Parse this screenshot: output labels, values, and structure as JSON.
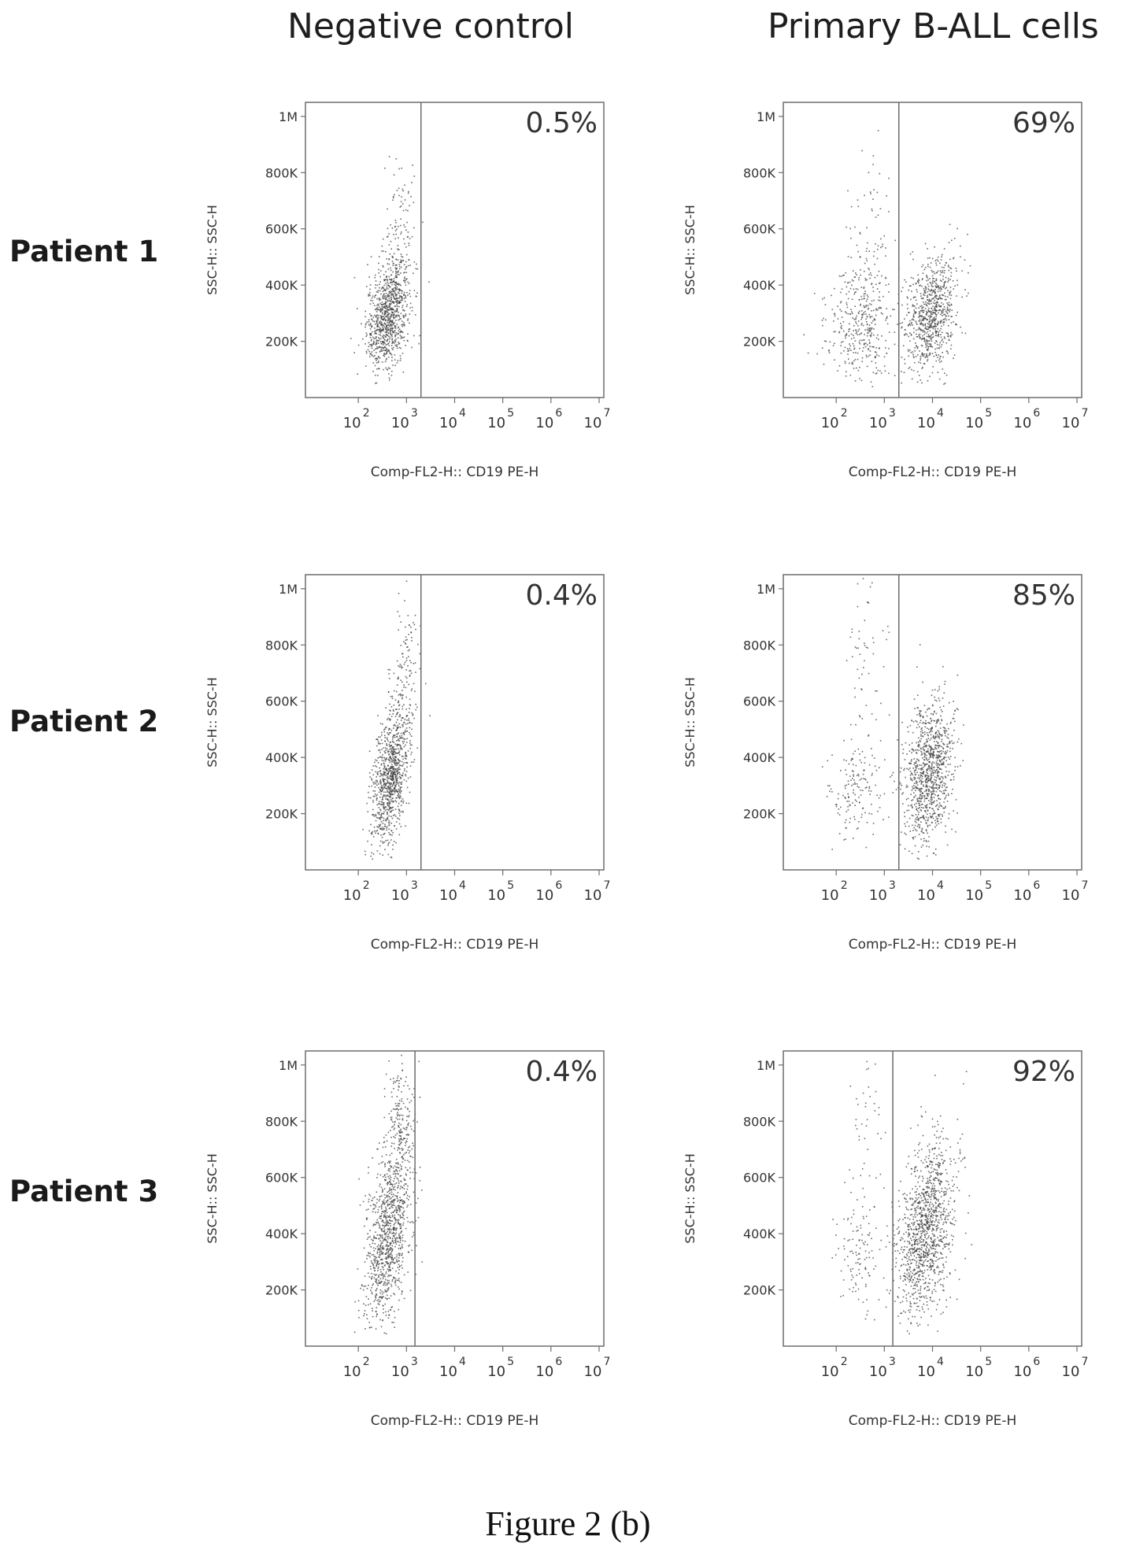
{
  "column_titles": [
    "Negative control",
    "Primary B-ALL cells"
  ],
  "row_labels": [
    "Patient 1",
    "Patient 2",
    "Patient 3"
  ],
  "figure_caption": "Figure 2 (b)",
  "colors": {
    "dots": "#3a3a3a",
    "frame": "#6d6d6d",
    "text": "#222222"
  },
  "chart_data": [
    {
      "type": "scatter",
      "row": "Patient 1",
      "column": "Negative control",
      "xlabel": "Comp-FL2-H:: CD19 PE-H",
      "ylabel": "SSC-H:: SSC-H",
      "x_scale": "log",
      "xlim": [
        10,
        10000000
      ],
      "ylim": [
        0,
        1050000
      ],
      "x_ticks": [
        "10",
        "10",
        "10",
        "10",
        "10",
        "10"
      ],
      "x_tick_exponents": [
        "2",
        "3",
        "4",
        "5",
        "6",
        "7"
      ],
      "y_ticks": [
        {
          "value": 200000,
          "label": "200K"
        },
        {
          "value": 400000,
          "label": "400K"
        },
        {
          "value": 600000,
          "label": "600K"
        },
        {
          "value": 800000,
          "label": "800K"
        },
        {
          "value": 1000000,
          "label": "1M"
        }
      ],
      "gate_x": 2000,
      "gate_percent": "0.5%",
      "populations": [
        {
          "center_x": 400,
          "center_y": 290000,
          "spread_log_x": 0.22,
          "spread_y": 90000,
          "n": 900,
          "tilt": 0.35
        },
        {
          "center_x": 700,
          "center_y": 550000,
          "spread_log_x": 0.18,
          "spread_y": 130000,
          "n": 140,
          "tilt": 0.2
        }
      ]
    },
    {
      "type": "scatter",
      "row": "Patient 1",
      "column": "Primary B-ALL cells",
      "xlabel": "Comp-FL2-H:: CD19 PE-H",
      "ylabel": "SSC-H:: SSC-H",
      "x_scale": "log",
      "xlim": [
        10,
        10000000
      ],
      "ylim": [
        0,
        1050000
      ],
      "x_ticks": [
        "10",
        "10",
        "10",
        "10",
        "10",
        "10"
      ],
      "x_tick_exponents": [
        "2",
        "3",
        "4",
        "5",
        "6",
        "7"
      ],
      "y_ticks": [
        {
          "value": 200000,
          "label": "200K"
        },
        {
          "value": 400000,
          "label": "400K"
        },
        {
          "value": 600000,
          "label": "600K"
        },
        {
          "value": 800000,
          "label": "800K"
        },
        {
          "value": 1000000,
          "label": "1M"
        }
      ],
      "gate_x": 2000,
      "gate_percent": "69%",
      "populations": [
        {
          "center_x": 300,
          "center_y": 270000,
          "spread_log_x": 0.35,
          "spread_y": 110000,
          "n": 380,
          "tilt": 0.0
        },
        {
          "center_x": 500,
          "center_y": 600000,
          "spread_log_x": 0.25,
          "spread_y": 150000,
          "n": 70,
          "tilt": 0.0
        },
        {
          "center_x": 9000,
          "center_y": 290000,
          "spread_log_x": 0.28,
          "spread_y": 100000,
          "n": 800,
          "tilt": 0.3
        }
      ]
    },
    {
      "type": "scatter",
      "row": "Patient 2",
      "column": "Negative control",
      "xlabel": "Comp-FL2-H:: CD19 PE-H",
      "ylabel": "SSC-H:: SSC-H",
      "x_scale": "log",
      "xlim": [
        10,
        10000000
      ],
      "ylim": [
        0,
        1050000
      ],
      "x_ticks": [
        "10",
        "10",
        "10",
        "10",
        "10",
        "10"
      ],
      "x_tick_exponents": [
        "2",
        "3",
        "4",
        "5",
        "6",
        "7"
      ],
      "y_ticks": [
        {
          "value": 200000,
          "label": "200K"
        },
        {
          "value": 400000,
          "label": "400K"
        },
        {
          "value": 600000,
          "label": "600K"
        },
        {
          "value": 800000,
          "label": "800K"
        },
        {
          "value": 1000000,
          "label": "1M"
        }
      ],
      "gate_x": 2000,
      "gate_percent": "0.4%",
      "populations": [
        {
          "center_x": 450,
          "center_y": 330000,
          "spread_log_x": 0.2,
          "spread_y": 120000,
          "n": 950,
          "tilt": 0.55
        },
        {
          "center_x": 900,
          "center_y": 700000,
          "spread_log_x": 0.15,
          "spread_y": 130000,
          "n": 120,
          "tilt": 0.2
        }
      ]
    },
    {
      "type": "scatter",
      "row": "Patient 2",
      "column": "Primary B-ALL cells",
      "xlabel": "Comp-FL2-H:: CD19 PE-H",
      "ylabel": "SSC-H:: SSC-H",
      "x_scale": "log",
      "xlim": [
        10,
        10000000
      ],
      "ylim": [
        0,
        1050000
      ],
      "x_ticks": [
        "10",
        "10",
        "10",
        "10",
        "10",
        "10"
      ],
      "x_tick_exponents": [
        "2",
        "3",
        "4",
        "5",
        "6",
        "7"
      ],
      "y_ticks": [
        {
          "value": 200000,
          "label": "200K"
        },
        {
          "value": 400000,
          "label": "400K"
        },
        {
          "value": 600000,
          "label": "600K"
        },
        {
          "value": 800000,
          "label": "800K"
        },
        {
          "value": 1000000,
          "label": "1M"
        }
      ],
      "gate_x": 2000,
      "gate_percent": "85%",
      "populations": [
        {
          "center_x": 250,
          "center_y": 280000,
          "spread_log_x": 0.3,
          "spread_y": 90000,
          "n": 160,
          "tilt": 0.0
        },
        {
          "center_x": 400,
          "center_y": 750000,
          "spread_log_x": 0.2,
          "spread_y": 160000,
          "n": 60,
          "tilt": 0.0
        },
        {
          "center_x": 8000,
          "center_y": 340000,
          "spread_log_x": 0.26,
          "spread_y": 130000,
          "n": 1000,
          "tilt": 0.25
        }
      ]
    },
    {
      "type": "scatter",
      "row": "Patient 3",
      "column": "Negative control",
      "xlabel": "Comp-FL2-H:: CD19 PE-H",
      "ylabel": "SSC-H:: SSC-H",
      "x_scale": "log",
      "xlim": [
        10,
        10000000
      ],
      "ylim": [
        0,
        1050000
      ],
      "x_ticks": [
        "10",
        "10",
        "10",
        "10",
        "10",
        "10"
      ],
      "x_tick_exponents": [
        "2",
        "3",
        "4",
        "5",
        "6",
        "7"
      ],
      "y_ticks": [
        {
          "value": 200000,
          "label": "200K"
        },
        {
          "value": 400000,
          "label": "400K"
        },
        {
          "value": 600000,
          "label": "600K"
        },
        {
          "value": 800000,
          "label": "800K"
        },
        {
          "value": 1000000,
          "label": "1M"
        }
      ],
      "gate_x": 1500,
      "gate_percent": "0.4%",
      "populations": [
        {
          "center_x": 400,
          "center_y": 400000,
          "spread_log_x": 0.24,
          "spread_y": 150000,
          "n": 1000,
          "tilt": 0.5
        },
        {
          "center_x": 700,
          "center_y": 800000,
          "spread_log_x": 0.16,
          "spread_y": 110000,
          "n": 180,
          "tilt": 0.2
        }
      ]
    },
    {
      "type": "scatter",
      "row": "Patient 3",
      "column": "Primary B-ALL cells",
      "xlabel": "Comp-FL2-H:: CD19 PE-H",
      "ylabel": "SSC-H:: SSC-H",
      "x_scale": "log",
      "xlim": [
        10,
        10000000
      ],
      "ylim": [
        0,
        1050000
      ],
      "x_ticks": [
        "10",
        "10",
        "10",
        "10",
        "10",
        "10"
      ],
      "x_tick_exponents": [
        "2",
        "3",
        "4",
        "5",
        "6",
        "7"
      ],
      "y_ticks": [
        {
          "value": 200000,
          "label": "200K"
        },
        {
          "value": 400000,
          "label": "400K"
        },
        {
          "value": 600000,
          "label": "600K"
        },
        {
          "value": 800000,
          "label": "800K"
        },
        {
          "value": 1000000,
          "label": "1M"
        }
      ],
      "gate_x": 1500,
      "gate_percent": "92%",
      "populations": [
        {
          "center_x": 250,
          "center_y": 330000,
          "spread_log_x": 0.25,
          "spread_y": 100000,
          "n": 110,
          "tilt": 0.0
        },
        {
          "center_x": 400,
          "center_y": 750000,
          "spread_log_x": 0.2,
          "spread_y": 160000,
          "n": 50,
          "tilt": 0.0
        },
        {
          "center_x": 7000,
          "center_y": 420000,
          "spread_log_x": 0.3,
          "spread_y": 150000,
          "n": 1200,
          "tilt": 0.35
        }
      ]
    }
  ]
}
